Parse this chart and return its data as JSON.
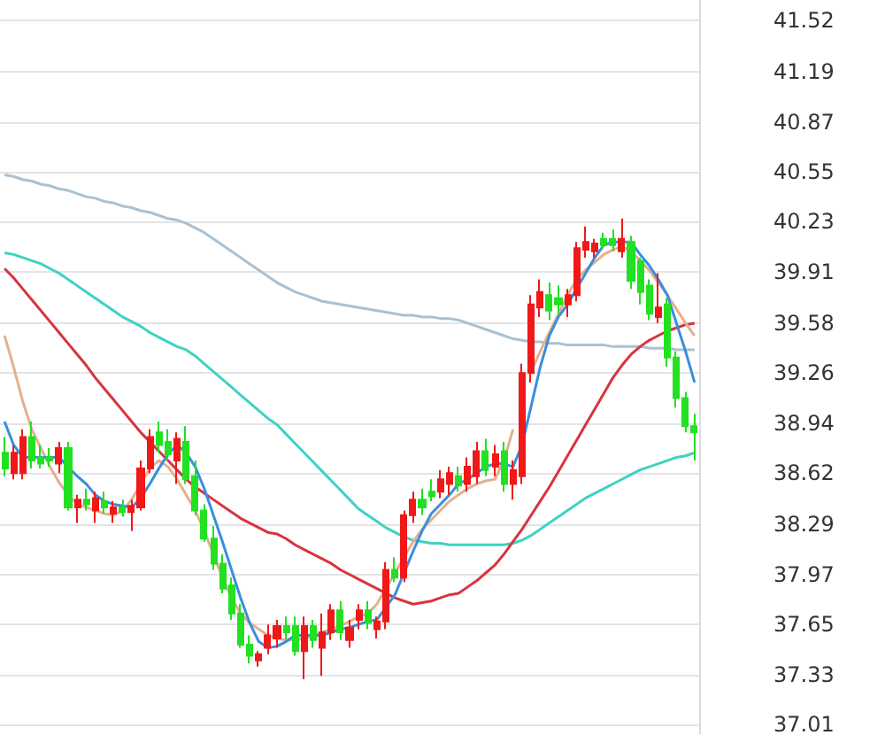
{
  "chart_data": {
    "type": "candlestick",
    "categories": [
      null,
      null,
      null,
      null,
      null,
      null,
      null,
      null,
      null,
      null,
      null,
      null,
      null,
      null,
      null,
      null,
      null,
      null,
      null,
      null,
      null,
      null,
      null,
      null,
      null,
      null,
      null,
      null,
      null,
      null,
      null,
      null,
      null,
      null,
      null,
      null,
      null,
      null,
      null,
      null,
      null,
      null,
      null,
      null,
      null,
      null,
      null,
      null,
      null,
      null,
      null,
      null,
      null,
      null,
      null,
      null,
      null,
      null,
      null,
      null,
      null,
      null,
      null,
      null,
      null,
      null,
      null,
      null,
      null,
      null,
      null,
      null,
      null,
      null,
      null,
      null,
      null
    ],
    "ohlc": [
      [
        38.75,
        38.85,
        38.6,
        38.65
      ],
      [
        38.62,
        38.8,
        38.58,
        38.75
      ],
      [
        38.62,
        38.9,
        38.58,
        38.85
      ],
      [
        38.85,
        38.95,
        38.65,
        38.7
      ],
      [
        38.72,
        38.8,
        38.65,
        38.68
      ],
      [
        38.72,
        38.78,
        38.66,
        38.7
      ],
      [
        38.68,
        38.82,
        38.62,
        38.78
      ],
      [
        38.78,
        38.82,
        38.38,
        38.4
      ],
      [
        38.4,
        38.48,
        38.3,
        38.45
      ],
      [
        38.45,
        38.52,
        38.38,
        38.42
      ],
      [
        38.38,
        38.5,
        38.3,
        38.46
      ],
      [
        38.44,
        38.5,
        38.36,
        38.4
      ],
      [
        38.36,
        38.44,
        38.3,
        38.4
      ],
      [
        38.4,
        38.45,
        38.34,
        38.37
      ],
      [
        38.37,
        38.45,
        38.25,
        38.41
      ],
      [
        38.4,
        38.7,
        38.38,
        38.65
      ],
      [
        38.65,
        38.9,
        38.62,
        38.85
      ],
      [
        38.88,
        38.95,
        38.75,
        38.8
      ],
      [
        38.82,
        38.9,
        38.7,
        38.74
      ],
      [
        38.7,
        38.88,
        38.55,
        38.84
      ],
      [
        38.82,
        38.92,
        38.55,
        38.58
      ],
      [
        38.6,
        38.7,
        38.35,
        38.38
      ],
      [
        38.38,
        38.42,
        38.18,
        38.2
      ],
      [
        38.2,
        38.28,
        38.0,
        38.04
      ],
      [
        38.04,
        38.1,
        37.85,
        37.88
      ],
      [
        37.9,
        37.95,
        37.68,
        37.72
      ],
      [
        37.72,
        37.78,
        37.5,
        37.52
      ],
      [
        37.52,
        37.58,
        37.4,
        37.45
      ],
      [
        37.42,
        37.48,
        37.38,
        37.46
      ],
      [
        37.5,
        37.65,
        37.46,
        37.58
      ],
      [
        37.56,
        37.68,
        37.5,
        37.64
      ],
      [
        37.64,
        37.7,
        37.55,
        37.6
      ],
      [
        37.64,
        37.7,
        37.45,
        37.48
      ],
      [
        37.48,
        37.7,
        37.3,
        37.64
      ],
      [
        37.64,
        37.68,
        37.5,
        37.55
      ],
      [
        37.5,
        37.72,
        37.32,
        37.6
      ],
      [
        37.6,
        37.78,
        37.55,
        37.74
      ],
      [
        37.74,
        37.8,
        37.55,
        37.6
      ],
      [
        37.55,
        37.68,
        37.5,
        37.63
      ],
      [
        37.68,
        37.78,
        37.62,
        37.74
      ],
      [
        37.74,
        37.8,
        37.62,
        37.66
      ],
      [
        37.62,
        37.7,
        37.56,
        37.67
      ],
      [
        37.67,
        38.05,
        37.62,
        38.0
      ],
      [
        38.0,
        38.08,
        37.92,
        37.95
      ],
      [
        37.95,
        38.38,
        37.92,
        38.35
      ],
      [
        38.35,
        38.5,
        38.3,
        38.45
      ],
      [
        38.45,
        38.52,
        38.35,
        38.4
      ],
      [
        38.5,
        38.58,
        38.44,
        38.47
      ],
      [
        38.5,
        38.64,
        38.46,
        38.58
      ],
      [
        38.55,
        38.66,
        38.48,
        38.62
      ],
      [
        38.6,
        38.66,
        38.5,
        38.54
      ],
      [
        38.55,
        38.72,
        38.5,
        38.66
      ],
      [
        38.6,
        38.82,
        38.55,
        38.76
      ],
      [
        38.76,
        38.84,
        38.6,
        38.64
      ],
      [
        38.66,
        38.8,
        38.6,
        38.74
      ],
      [
        38.76,
        38.82,
        38.5,
        38.55
      ],
      [
        38.55,
        38.7,
        38.45,
        38.64
      ],
      [
        38.6,
        39.32,
        38.55,
        39.26
      ],
      [
        39.26,
        39.76,
        39.2,
        39.7
      ],
      [
        39.68,
        39.86,
        39.62,
        39.78
      ],
      [
        39.76,
        39.84,
        39.6,
        39.66
      ],
      [
        39.74,
        39.82,
        39.64,
        39.7
      ],
      [
        39.7,
        39.8,
        39.62,
        39.76
      ],
      [
        39.76,
        40.1,
        39.72,
        40.06
      ],
      [
        40.05,
        40.2,
        40.0,
        40.1
      ],
      [
        40.04,
        40.12,
        40.0,
        40.09
      ],
      [
        40.12,
        40.16,
        40.06,
        40.08
      ],
      [
        40.12,
        40.18,
        40.04,
        40.08
      ],
      [
        40.04,
        40.25,
        40.0,
        40.12
      ],
      [
        40.1,
        40.14,
        39.8,
        39.85
      ],
      [
        39.98,
        40.0,
        39.7,
        39.78
      ],
      [
        39.82,
        39.86,
        39.6,
        39.64
      ],
      [
        39.62,
        39.9,
        39.58,
        39.68
      ],
      [
        39.7,
        39.74,
        39.3,
        39.36
      ],
      [
        39.36,
        39.4,
        39.04,
        39.1
      ],
      [
        39.1,
        39.14,
        38.88,
        38.92
      ],
      [
        38.92,
        39.0,
        38.7,
        38.88
      ]
    ],
    "series": [
      {
        "type": "line",
        "color": "#a9c1d2",
        "values": [
          40.53,
          40.52,
          40.5,
          40.49,
          40.47,
          40.46,
          40.44,
          40.43,
          40.41,
          40.39,
          40.38,
          40.36,
          40.35,
          40.33,
          40.32,
          40.3,
          40.29,
          40.27,
          40.25,
          40.24,
          40.22,
          40.19,
          40.16,
          40.12,
          40.08,
          40.04,
          40.0,
          39.96,
          39.92,
          39.88,
          39.84,
          39.81,
          39.78,
          39.76,
          39.74,
          39.72,
          39.71,
          39.7,
          39.69,
          39.68,
          39.67,
          39.66,
          39.65,
          39.64,
          39.63,
          39.63,
          39.62,
          39.62,
          39.61,
          39.61,
          39.6,
          39.58,
          39.56,
          39.54,
          39.52,
          39.5,
          39.48,
          39.47,
          39.46,
          39.46,
          39.45,
          39.45,
          39.44,
          39.44,
          39.44,
          39.44,
          39.44,
          39.43,
          39.43,
          39.43,
          39.43,
          39.42,
          39.42,
          39.42,
          39.41,
          39.41,
          39.41
        ]
      },
      {
        "type": "line",
        "color": "#3fd2c2",
        "values": [
          40.03,
          40.02,
          40.0,
          39.98,
          39.96,
          39.93,
          39.9,
          39.86,
          39.82,
          39.78,
          39.74,
          39.7,
          39.66,
          39.62,
          39.59,
          39.56,
          39.52,
          39.49,
          39.46,
          39.43,
          39.41,
          39.37,
          39.32,
          39.27,
          39.22,
          39.17,
          39.12,
          39.07,
          39.02,
          38.97,
          38.93,
          38.87,
          38.81,
          38.75,
          38.69,
          38.63,
          38.57,
          38.51,
          38.45,
          38.39,
          38.35,
          38.31,
          38.27,
          38.24,
          38.21,
          38.19,
          38.18,
          38.17,
          38.17,
          38.16,
          38.16,
          38.16,
          38.16,
          38.16,
          38.16,
          38.16,
          38.17,
          38.19,
          38.22,
          38.26,
          38.3,
          38.34,
          38.38,
          38.42,
          38.46,
          38.49,
          38.52,
          38.55,
          38.58,
          38.61,
          38.64,
          38.66,
          38.68,
          38.7,
          38.72,
          38.73,
          38.75
        ]
      },
      {
        "type": "line",
        "color": "#d8343e",
        "values": [
          39.93,
          39.87,
          39.8,
          39.73,
          39.66,
          39.59,
          39.52,
          39.45,
          39.38,
          39.31,
          39.23,
          39.16,
          39.09,
          39.02,
          38.95,
          38.88,
          38.82,
          38.76,
          38.7,
          38.64,
          38.58,
          38.53,
          38.49,
          38.45,
          38.41,
          38.37,
          38.33,
          38.3,
          38.27,
          38.24,
          38.23,
          38.2,
          38.16,
          38.13,
          38.1,
          38.07,
          38.04,
          38.0,
          37.97,
          37.94,
          37.91,
          37.88,
          37.85,
          37.82,
          37.8,
          37.78,
          37.79,
          37.8,
          37.82,
          37.84,
          37.85,
          37.89,
          37.93,
          37.98,
          38.03,
          38.1,
          38.18,
          38.26,
          38.35,
          38.44,
          38.53,
          38.63,
          38.73,
          38.83,
          38.93,
          39.03,
          39.13,
          39.23,
          39.31,
          39.38,
          39.43,
          39.47,
          39.5,
          39.53,
          39.55,
          39.57,
          39.58
        ]
      },
      {
        "type": "line",
        "color": "#e3b08e",
        "values": [
          39.5,
          39.3,
          39.08,
          38.9,
          38.78,
          38.66,
          38.56,
          38.48,
          38.42,
          38.4,
          38.38,
          38.36,
          38.35,
          38.38,
          38.45,
          38.55,
          38.65,
          38.7,
          38.66,
          38.58,
          38.48,
          38.38,
          38.25,
          38.1,
          37.95,
          37.82,
          37.72,
          37.66,
          37.62,
          37.58,
          37.56,
          37.55,
          37.55,
          37.56,
          37.58,
          37.6,
          37.62,
          37.64,
          37.67,
          37.7,
          37.72,
          37.78,
          37.88,
          37.98,
          38.08,
          38.18,
          38.26,
          38.32,
          38.38,
          38.44,
          38.48,
          38.52,
          38.55,
          38.57,
          38.58,
          38.7,
          38.9,
          null,
          39.27,
          39.4,
          39.52,
          39.64,
          39.76,
          39.86,
          39.92,
          39.97,
          40.02,
          40.05,
          40.07,
          40.04,
          39.98,
          39.92,
          39.84,
          39.76,
          39.67,
          39.58,
          39.5
        ]
      },
      {
        "type": "line",
        "color": "#3a8ede",
        "values": [
          38.95,
          38.8,
          38.72,
          38.72,
          38.72,
          38.72,
          38.72,
          38.66,
          38.6,
          38.55,
          38.48,
          38.44,
          38.42,
          38.41,
          38.4,
          38.46,
          38.55,
          38.65,
          38.74,
          38.8,
          38.75,
          38.66,
          38.52,
          38.35,
          38.18,
          38.0,
          37.82,
          37.66,
          37.54,
          37.5,
          37.51,
          37.54,
          37.58,
          37.58,
          37.58,
          37.58,
          37.6,
          37.62,
          37.63,
          37.65,
          37.67,
          37.68,
          37.76,
          37.84,
          37.98,
          38.12,
          38.25,
          38.36,
          38.42,
          38.48,
          38.55,
          38.58,
          38.62,
          38.66,
          38.68,
          38.68,
          38.66,
          38.8,
          39.05,
          39.3,
          39.5,
          39.62,
          39.7,
          39.8,
          39.9,
          40.0,
          40.08,
          40.1,
          40.1,
          40.1,
          40.02,
          39.95,
          39.86,
          39.76,
          39.58,
          39.4,
          39.2
        ]
      }
    ],
    "ylim": [
      36.95,
      41.65
    ],
    "yticks": [
      37.01,
      37.33,
      37.65,
      37.97,
      38.29,
      38.62,
      38.94,
      39.26,
      39.58,
      39.91,
      40.23,
      40.55,
      40.87,
      41.19,
      41.52
    ],
    "grid": "y"
  }
}
